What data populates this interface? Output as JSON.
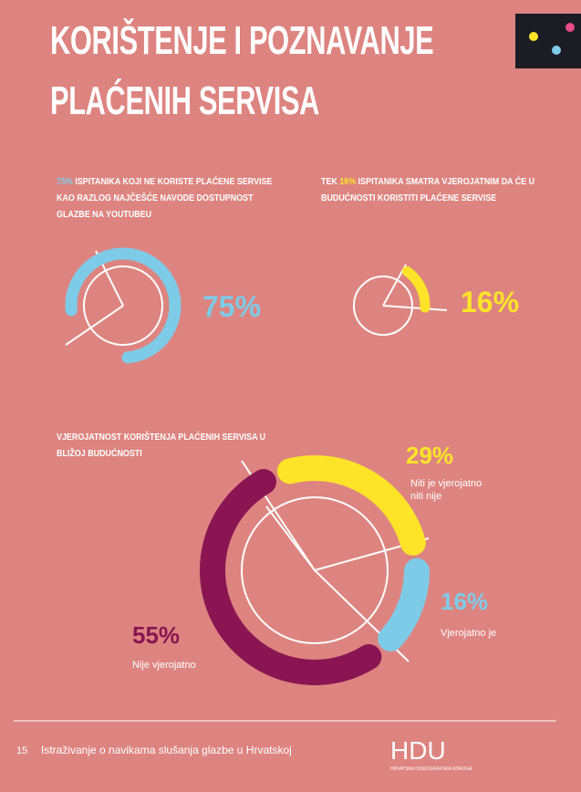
{
  "header": {
    "title": "KORIŠTENJE I POZNAVANJE PLAĆENIH SERVISA"
  },
  "chart_data": [
    {
      "type": "ring",
      "caption": [
        "75%",
        "ISPITANIKA KOJI NE KORISTE PLAĆENE SERVISE KAO RAZLOG NAJČEŠĆE NAVODE DOSTUPNOST GLAZBE NA YOUTUBEU"
      ],
      "values": [
        75
      ],
      "value_labels": [
        "75%"
      ],
      "color": "#7ecbe8"
    },
    {
      "type": "ring",
      "caption": [
        "TEK",
        "16%",
        "ISPITANIKA SMATRA VJEROJATNIM DA ĆE U BUDUĆNOSTI KORISTITI PLAĆENE SERVISE"
      ],
      "values": [
        16
      ],
      "value_labels": [
        "16%"
      ],
      "color": "#fde428"
    },
    {
      "type": "donut",
      "title": "VJEROJATNOST KORIŠTENJA PLAĆENIH SERVISA U BLIŽOJ BUDUĆNOSTI",
      "categories": [
        "Niti je vjerojatno niti nije",
        "Vjerojatno je",
        "Nije vjerojatno"
      ],
      "values": [
        29,
        16,
        55
      ],
      "value_labels": [
        "29%",
        "16%",
        "55%"
      ],
      "colors": [
        "#fde428",
        "#7ecbe8",
        "#8a1552"
      ]
    }
  ],
  "footer": {
    "page": "15",
    "text": "Istraživanje o navikama slušanja glazbe u Hrvatskoj",
    "logo": "HDU",
    "logo_subtitle": "HRVATSKA DISKOGRAFSKA UDRUGA"
  }
}
